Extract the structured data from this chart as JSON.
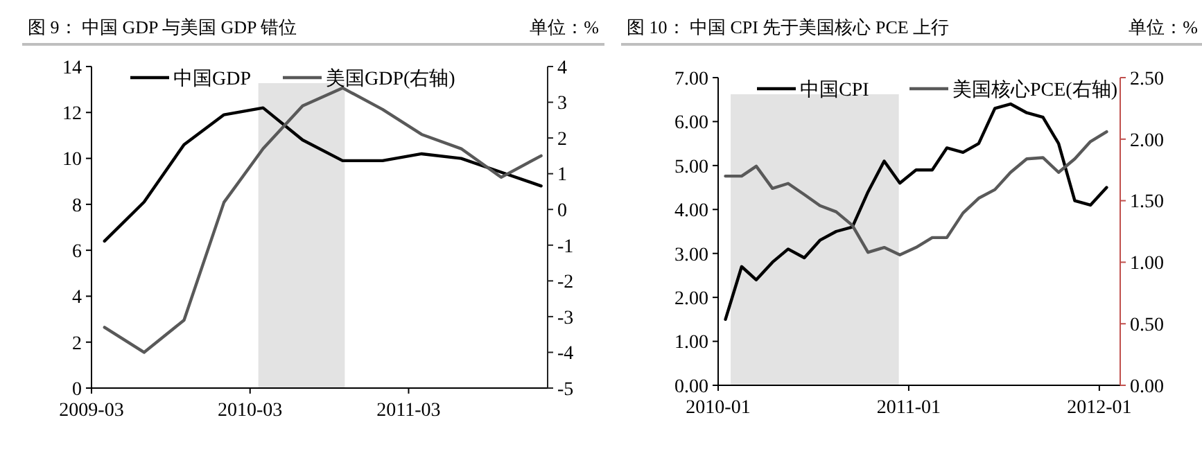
{
  "chart_data": [
    {
      "type": "line",
      "title": "图 9：  中国 GDP 与美国 GDP 错位",
      "subtitle": "单位：%",
      "legend": "top",
      "x": [
        "2009-03-31",
        "2009-06-30",
        "2009-09-30",
        "2009-12-31",
        "2010-03-31",
        "2010-06-30",
        "2010-09-30",
        "2010-12-31",
        "2011-03-31",
        "2011-06-30",
        "2011-09-30",
        "2011-12-31"
      ],
      "xlim": [
        "2009-03",
        "2012-01-15"
      ],
      "xticks": [
        "2009-03",
        "2010-03",
        "2011-03"
      ],
      "ylim": [
        0,
        14
      ],
      "yticks": [
        0,
        2,
        4,
        6,
        8,
        10,
        12,
        14
      ],
      "y2lim": [
        -5,
        4
      ],
      "y2ticks": [
        -5,
        -4,
        -3,
        -2,
        -1,
        0,
        1,
        2,
        3,
        4
      ],
      "bands": [
        {
          "axis": "x",
          "from": "2010-03-20",
          "to": "2010-10-05",
          "color": "#e3e3e3"
        }
      ],
      "series": [
        {
          "name": "中国GDP",
          "color": "#000000",
          "values": [
            6.4,
            8.1,
            10.6,
            11.9,
            12.2,
            10.8,
            9.9,
            9.9,
            10.2,
            10.0,
            9.4,
            8.8
          ]
        },
        {
          "name": "美国GDP(右轴)",
          "color": "#595959",
          "axis": "y2",
          "values": [
            -3.3,
            -4.0,
            -3.1,
            0.2,
            1.7,
            2.9,
            3.4,
            2.8,
            2.1,
            1.7,
            0.9,
            1.5
          ]
        }
      ]
    },
    {
      "type": "line",
      "title": "图 10：   中国 CPI 先于美国核心 PCE 上行",
      "subtitle": "单位：%",
      "legend": "top",
      "x": [
        "2010-01-15",
        "2010-02-15",
        "2010-03-15",
        "2010-04-15",
        "2010-05-15",
        "2010-06-15",
        "2010-07-15",
        "2010-08-15",
        "2010-09-15",
        "2010-10-15",
        "2010-11-15",
        "2010-12-15",
        "2011-01-15",
        "2011-02-15",
        "2011-03-15",
        "2011-04-15",
        "2011-05-15",
        "2011-06-15",
        "2011-07-15",
        "2011-08-15",
        "2011-09-15",
        "2011-10-15",
        "2011-11-15",
        "2011-12-15",
        "2012-01-15"
      ],
      "xlim": [
        "2010-01",
        "2012-02-10"
      ],
      "xticks": [
        "2010-01",
        "2011-01",
        {
          "value": "2012-01",
          "label": "2012-01"
        }
      ],
      "ylim": [
        0,
        7
      ],
      "yticks": [
        {
          "value": 0,
          "label": "0.00"
        },
        {
          "value": 1,
          "label": "1.00"
        },
        {
          "value": 2,
          "label": "2.00"
        },
        {
          "value": 3,
          "label": "3.00"
        },
        {
          "value": 4,
          "label": "4.00"
        },
        {
          "value": 5,
          "label": "5.00"
        },
        {
          "value": 6,
          "label": "6.00"
        },
        {
          "value": 7,
          "label": "7.00"
        }
      ],
      "y2lim": [
        0,
        2.5
      ],
      "y2ticks": [
        {
          "value": 0,
          "label": "0.00"
        },
        {
          "value": 0.5,
          "label": "0.50"
        },
        {
          "value": 1,
          "label": "1.00"
        },
        {
          "value": 1.5,
          "label": "1.50"
        },
        {
          "value": 2,
          "label": "2.00"
        },
        {
          "value": 2.5,
          "label": "2.50"
        }
      ],
      "bands": [
        {
          "axis": "x",
          "from": "2010-01-25",
          "to": "2010-12-13",
          "color": "#e3e3e3"
        }
      ],
      "series": [
        {
          "name": "中国CPI",
          "color": "#000000",
          "values": [
            1.5,
            2.7,
            2.4,
            2.8,
            3.1,
            2.9,
            3.3,
            3.5,
            3.6,
            4.4,
            5.1,
            4.6,
            4.9,
            4.9,
            5.4,
            5.3,
            5.5,
            6.3,
            6.4,
            6.2,
            6.1,
            5.5,
            4.2,
            4.1,
            4.5
          ]
        },
        {
          "name": "美国核心PCE(右轴)",
          "color": "#595959",
          "axis": "y2",
          "values": [
            1.7,
            1.7,
            1.78,
            1.6,
            1.64,
            1.55,
            1.46,
            1.41,
            1.3,
            1.08,
            1.12,
            1.06,
            1.12,
            1.2,
            1.2,
            1.4,
            1.52,
            1.59,
            1.73,
            1.84,
            1.85,
            1.73,
            1.84,
            1.98,
            2.06
          ]
        }
      ]
    }
  ]
}
